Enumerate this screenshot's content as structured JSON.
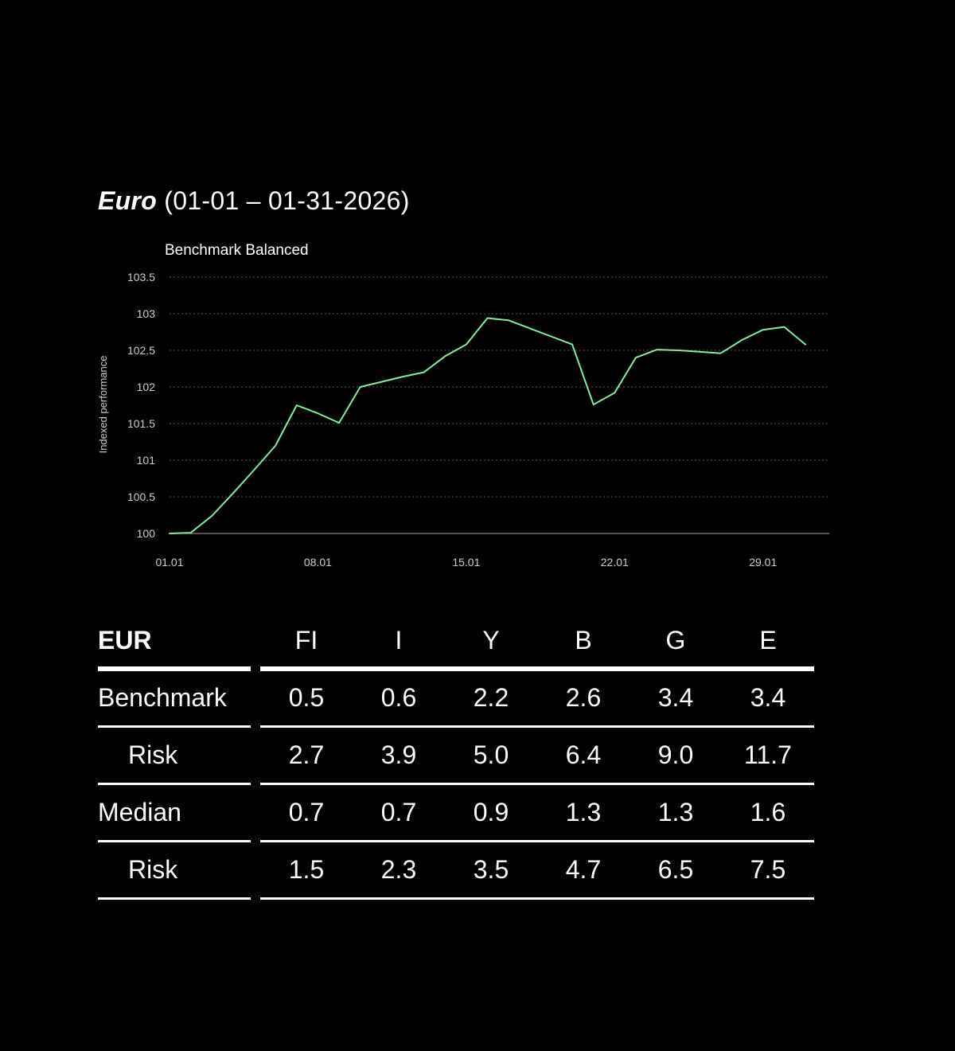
{
  "header": {
    "title_strong": "Euro",
    "title_rest": " (01-01 – 01-31-2026)"
  },
  "chart_data": {
    "type": "line",
    "title": "Benchmark Balanced",
    "ylabel": "Indexed performance",
    "xlabel": "",
    "xlim": [
      1,
      31
    ],
    "ylim": [
      100,
      103.5
    ],
    "x_ticks": [
      1,
      8,
      15,
      22,
      29
    ],
    "x_tick_labels": [
      "01.01",
      "08.01",
      "15.01",
      "22.01",
      "29.01"
    ],
    "y_ticks": [
      100,
      100.5,
      101,
      101.5,
      102,
      102.5,
      103,
      103.5
    ],
    "y_tick_labels": [
      "100",
      "100.5",
      "101",
      "101.5",
      "102",
      "102.5",
      "103",
      "103.5"
    ],
    "grid": true,
    "line_color": "#7CF0A0",
    "series": [
      {
        "x": [
          1,
          2,
          3,
          4,
          5,
          6,
          7,
          8,
          9,
          10,
          11,
          12,
          13,
          14,
          15,
          16,
          17,
          18,
          19,
          20,
          21,
          22,
          23,
          24,
          25,
          26,
          27,
          28,
          29,
          30,
          31
        ],
        "values": [
          100.0,
          100.01,
          100.24,
          100.55,
          100.87,
          101.2,
          101.75,
          101.64,
          101.51,
          102.0,
          102.07,
          102.14,
          102.2,
          102.42,
          102.58,
          102.94,
          102.91,
          102.8,
          102.69,
          102.58,
          101.76,
          101.92,
          102.4,
          102.51,
          102.5,
          102.48,
          102.46,
          102.64,
          102.78,
          102.82,
          102.58
        ]
      }
    ]
  },
  "table": {
    "corner": "EUR",
    "columns": [
      "FI",
      "I",
      "Y",
      "B",
      "G",
      "E"
    ],
    "rows": [
      {
        "label": "Benchmark",
        "indent": false,
        "values": [
          "0.5",
          "0.6",
          "2.2",
          "2.6",
          "3.4",
          "3.4"
        ]
      },
      {
        "label": "Risk",
        "indent": true,
        "values": [
          "2.7",
          "3.9",
          "5.0",
          "6.4",
          "9.0",
          "11.7"
        ]
      },
      {
        "label": "Median",
        "indent": false,
        "values": [
          "0.7",
          "0.7",
          "0.9",
          "1.3",
          "1.3",
          "1.6"
        ]
      },
      {
        "label": "Risk",
        "indent": true,
        "values": [
          "1.5",
          "2.3",
          "3.5",
          "4.7",
          "6.5",
          "7.5"
        ]
      }
    ]
  }
}
